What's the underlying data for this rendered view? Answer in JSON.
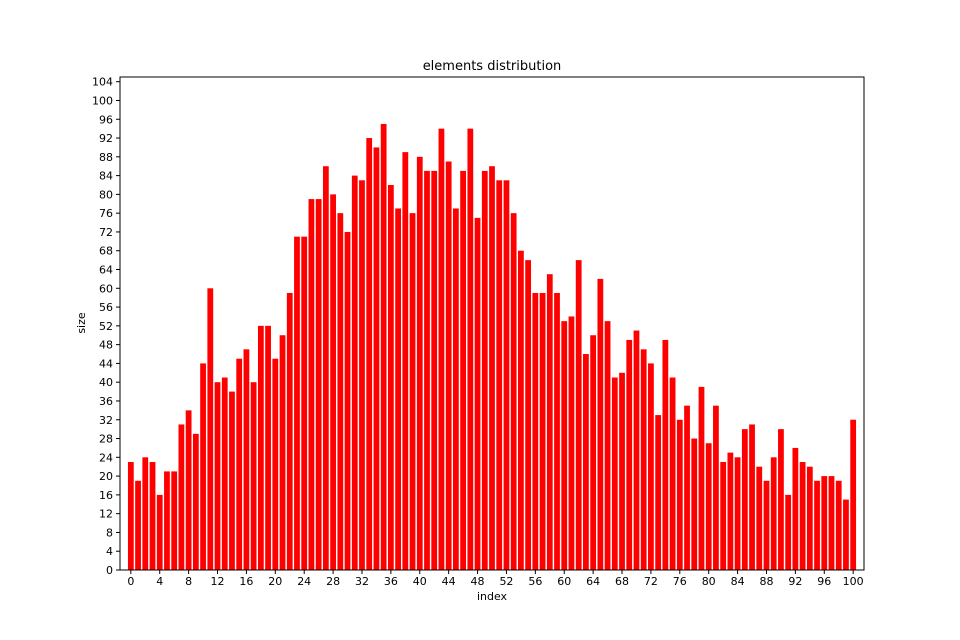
{
  "chart_data": {
    "type": "bar",
    "title": "elements distribution",
    "xlabel": "index",
    "ylabel": "size",
    "bar_color": "#ff0000",
    "xlim": [
      -1.5,
      101.5
    ],
    "ylim": [
      0,
      105
    ],
    "xticks": [
      0,
      4,
      8,
      12,
      16,
      20,
      24,
      28,
      32,
      36,
      40,
      44,
      48,
      52,
      56,
      60,
      64,
      68,
      72,
      76,
      80,
      84,
      88,
      92,
      96,
      100
    ],
    "yticks": [
      0,
      4,
      8,
      12,
      16,
      20,
      24,
      28,
      32,
      36,
      40,
      44,
      48,
      52,
      56,
      60,
      64,
      68,
      72,
      76,
      80,
      84,
      88,
      92,
      96,
      100,
      104
    ],
    "grid": false,
    "categories": [
      0,
      1,
      2,
      3,
      4,
      5,
      6,
      7,
      8,
      9,
      10,
      11,
      12,
      13,
      14,
      15,
      16,
      17,
      18,
      19,
      20,
      21,
      22,
      23,
      24,
      25,
      26,
      27,
      28,
      29,
      30,
      31,
      32,
      33,
      34,
      35,
      36,
      37,
      38,
      39,
      40,
      41,
      42,
      43,
      44,
      45,
      46,
      47,
      48,
      49,
      50,
      51,
      52,
      53,
      54,
      55,
      56,
      57,
      58,
      59,
      60,
      61,
      62,
      63,
      64,
      65,
      66,
      67,
      68,
      69,
      70,
      71,
      72,
      73,
      74,
      75,
      76,
      77,
      78,
      79,
      80,
      81,
      82,
      83,
      84,
      85,
      86,
      87,
      88,
      89,
      90,
      91,
      92,
      93,
      94,
      95,
      96,
      97,
      98,
      99,
      100
    ],
    "values": [
      23,
      19,
      24,
      23,
      16,
      21,
      21,
      31,
      34,
      29,
      44,
      60,
      40,
      41,
      38,
      45,
      47,
      40,
      52,
      52,
      45,
      50,
      59,
      71,
      71,
      79,
      79,
      86,
      80,
      76,
      72,
      84,
      83,
      92,
      90,
      95,
      82,
      77,
      89,
      76,
      88,
      85,
      85,
      94,
      87,
      77,
      85,
      94,
      75,
      85,
      86,
      83,
      83,
      76,
      68,
      66,
      59,
      59,
      63,
      59,
      53,
      54,
      66,
      46,
      50,
      62,
      53,
      41,
      42,
      49,
      51,
      47,
      44,
      33,
      49,
      41,
      32,
      35,
      28,
      39,
      27,
      35,
      23,
      25,
      24,
      30,
      31,
      22,
      19,
      24,
      30,
      16,
      26,
      23,
      22,
      19,
      20,
      20,
      19,
      15,
      32
    ]
  }
}
